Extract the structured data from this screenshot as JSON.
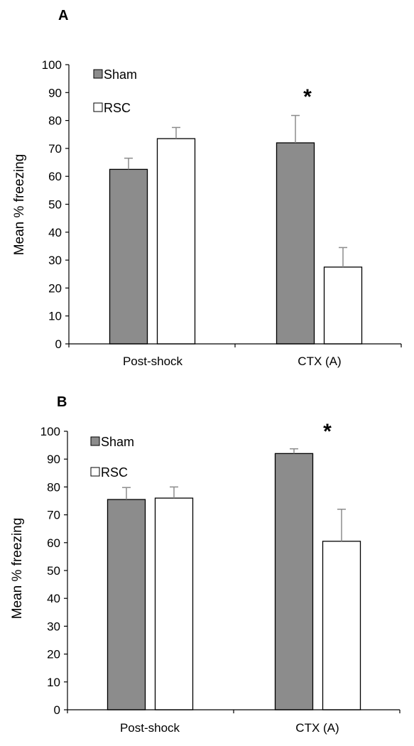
{
  "colors": {
    "sham": "#8c8c8c",
    "rsc": "#ffffff",
    "stroke": "#000000",
    "error_bar": "#8c8c8c"
  },
  "chart_data": [
    {
      "type": "bar",
      "panel_label": "A",
      "categories": [
        "Post-shock",
        "CTX (A)"
      ],
      "series": [
        {
          "name": "Sham",
          "values": [
            62.5,
            72
          ],
          "errors": [
            4,
            9.8
          ]
        },
        {
          "name": "RSC",
          "values": [
            73.5,
            27.5
          ],
          "errors": [
            4,
            7
          ]
        }
      ],
      "ylabel": "Mean % freezing",
      "ylim": [
        0,
        100
      ],
      "yticks": [
        "0",
        "10",
        "20",
        "30",
        "40",
        "50",
        "60",
        "70",
        "80",
        "90",
        "100"
      ],
      "legend_position": "top-left",
      "annotations": [
        {
          "text": "*",
          "category": "CTX (A)"
        }
      ]
    },
    {
      "type": "bar",
      "panel_label": "B",
      "categories": [
        "Post-shock",
        "CTX (A)"
      ],
      "series": [
        {
          "name": "Sham",
          "values": [
            75.5,
            92
          ],
          "errors": [
            4.3,
            1.7
          ]
        },
        {
          "name": "RSC",
          "values": [
            76,
            60.5
          ],
          "errors": [
            4,
            11.5
          ]
        }
      ],
      "ylabel": "Mean % freezing",
      "ylim": [
        0,
        100
      ],
      "yticks": [
        "0",
        "10",
        "20",
        "30",
        "40",
        "50",
        "60",
        "70",
        "80",
        "90",
        "100"
      ],
      "legend_position": "top-left",
      "annotations": [
        {
          "text": "*",
          "category": "CTX (A)"
        }
      ]
    }
  ]
}
